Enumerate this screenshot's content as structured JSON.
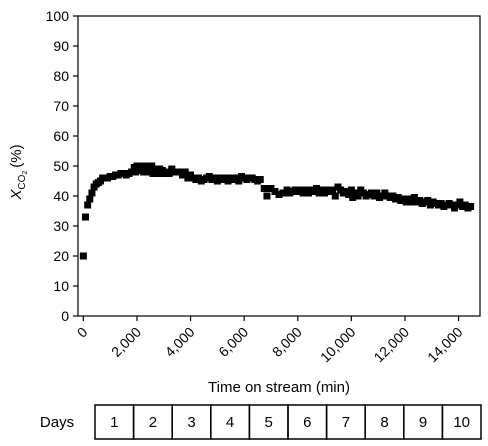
{
  "chart_data": {
    "type": "scatter",
    "xlabel": "Time on stream (min)",
    "ylabel": {
      "symbol": "X",
      "subscript": "CO",
      "subscript2": "2",
      "unit": "(%)"
    },
    "xlim": [
      -200,
      14800
    ],
    "ylim": [
      0,
      100
    ],
    "x_ticks": [
      0,
      2000,
      4000,
      6000,
      8000,
      10000,
      12000,
      14000
    ],
    "x_tick_labels": [
      "0",
      "2,000",
      "4,000",
      "6,000",
      "8,000",
      "10,000",
      "12,000",
      "14,000"
    ],
    "y_ticks": [
      0,
      10,
      20,
      30,
      40,
      50,
      60,
      70,
      80,
      90,
      100
    ],
    "y_tick_labels": [
      "0",
      "10",
      "20",
      "30",
      "40",
      "50",
      "60",
      "70",
      "80",
      "90",
      "100"
    ],
    "grid": false,
    "legend": "none",
    "marker": "square",
    "marker_color": "#000000",
    "series": [
      {
        "points": [
          [
            0,
            20
          ],
          [
            80,
            33
          ],
          [
            160,
            37
          ],
          [
            240,
            39
          ],
          [
            320,
            41
          ],
          [
            400,
            43
          ],
          [
            480,
            44
          ],
          [
            560,
            44.5
          ],
          [
            640,
            45
          ],
          [
            720,
            46
          ],
          [
            800,
            46
          ],
          [
            900,
            46
          ],
          [
            1000,
            46.5
          ],
          [
            1100,
            46.5
          ],
          [
            1200,
            47
          ],
          [
            1300,
            47
          ],
          [
            1400,
            47.5
          ],
          [
            1500,
            47.5
          ],
          [
            1600,
            47
          ],
          [
            1700,
            47.5
          ],
          [
            1800,
            48
          ],
          [
            1900,
            49.5
          ],
          [
            1950,
            48
          ],
          [
            2000,
            50
          ],
          [
            2050,
            49
          ],
          [
            2100,
            48.5
          ],
          [
            2150,
            50
          ],
          [
            2200,
            49
          ],
          [
            2250,
            48
          ],
          [
            2300,
            50
          ],
          [
            2350,
            49
          ],
          [
            2400,
            48.5
          ],
          [
            2450,
            49
          ],
          [
            2500,
            48
          ],
          [
            2550,
            50
          ],
          [
            2600,
            47.5
          ],
          [
            2650,
            49
          ],
          [
            2700,
            48
          ],
          [
            2750,
            48.5
          ],
          [
            2800,
            47.5
          ],
          [
            2850,
            49
          ],
          [
            2900,
            48
          ],
          [
            2950,
            48.5
          ],
          [
            3000,
            47.5
          ],
          [
            3100,
            48
          ],
          [
            3200,
            47.5
          ],
          [
            3300,
            49
          ],
          [
            3400,
            48
          ],
          [
            3500,
            48
          ],
          [
            3600,
            48
          ],
          [
            3700,
            47
          ],
          [
            3800,
            48
          ],
          [
            3900,
            46
          ],
          [
            4000,
            47
          ],
          [
            4100,
            46
          ],
          [
            4200,
            45.5
          ],
          [
            4300,
            46
          ],
          [
            4400,
            45
          ],
          [
            4500,
            45.5
          ],
          [
            4600,
            46
          ],
          [
            4700,
            46.5
          ],
          [
            4800,
            45.5
          ],
          [
            4900,
            46
          ],
          [
            5000,
            45
          ],
          [
            5100,
            46
          ],
          [
            5200,
            45.5
          ],
          [
            5300,
            46
          ],
          [
            5400,
            45
          ],
          [
            5500,
            46
          ],
          [
            5600,
            45.5
          ],
          [
            5700,
            46
          ],
          [
            5800,
            45
          ],
          [
            5900,
            46.5
          ],
          [
            6000,
            46
          ],
          [
            6100,
            45.5
          ],
          [
            6200,
            46
          ],
          [
            6300,
            46
          ],
          [
            6400,
            45.5
          ],
          [
            6500,
            45
          ],
          [
            6600,
            45.5
          ],
          [
            6750,
            42.5
          ],
          [
            6850,
            40
          ],
          [
            7000,
            42.5
          ],
          [
            7150,
            41.5
          ],
          [
            7300,
            40.5
          ],
          [
            7450,
            41
          ],
          [
            7600,
            42
          ],
          [
            7700,
            41
          ],
          [
            7800,
            41.5
          ],
          [
            7900,
            42
          ],
          [
            8000,
            41.5
          ],
          [
            8100,
            42
          ],
          [
            8200,
            41
          ],
          [
            8300,
            42
          ],
          [
            8400,
            41
          ],
          [
            8500,
            42
          ],
          [
            8600,
            41.5
          ],
          [
            8700,
            42.5
          ],
          [
            8800,
            41
          ],
          [
            8900,
            42
          ],
          [
            9000,
            41
          ],
          [
            9100,
            42
          ],
          [
            9200,
            41.5
          ],
          [
            9300,
            42
          ],
          [
            9400,
            40
          ],
          [
            9500,
            43
          ],
          [
            9600,
            42
          ],
          [
            9700,
            41
          ],
          [
            9800,
            41.5
          ],
          [
            9900,
            40.5
          ],
          [
            10000,
            42
          ],
          [
            10050,
            39.5
          ],
          [
            10150,
            41
          ],
          [
            10250,
            40
          ],
          [
            10350,
            42
          ],
          [
            10450,
            41
          ],
          [
            10550,
            40
          ],
          [
            10650,
            40.5
          ],
          [
            10750,
            41
          ],
          [
            10850,
            40
          ],
          [
            10950,
            41
          ],
          [
            11050,
            39.5
          ],
          [
            11150,
            40
          ],
          [
            11250,
            41
          ],
          [
            11350,
            40
          ],
          [
            11450,
            39.5
          ],
          [
            11550,
            40
          ],
          [
            11650,
            39
          ],
          [
            11750,
            39.5
          ],
          [
            11850,
            38.5
          ],
          [
            11950,
            39
          ],
          [
            12050,
            38
          ],
          [
            12150,
            39
          ],
          [
            12250,
            38
          ],
          [
            12350,
            39.5
          ],
          [
            12450,
            38
          ],
          [
            12550,
            38.5
          ],
          [
            12650,
            37.5
          ],
          [
            12750,
            38
          ],
          [
            12850,
            38.5
          ],
          [
            12950,
            37
          ],
          [
            13050,
            38
          ],
          [
            13150,
            37.5
          ],
          [
            13250,
            37
          ],
          [
            13350,
            37.5
          ],
          [
            13450,
            36.5
          ],
          [
            13550,
            37
          ],
          [
            13650,
            37.5
          ],
          [
            13750,
            37
          ],
          [
            13850,
            36
          ],
          [
            13950,
            37
          ],
          [
            14050,
            38
          ],
          [
            14150,
            36.5
          ],
          [
            14250,
            37
          ],
          [
            14350,
            36
          ],
          [
            14450,
            36.5
          ]
        ]
      }
    ]
  },
  "days": {
    "label": "Days",
    "values": [
      "1",
      "2",
      "3",
      "4",
      "5",
      "6",
      "7",
      "8",
      "9",
      "10"
    ]
  }
}
